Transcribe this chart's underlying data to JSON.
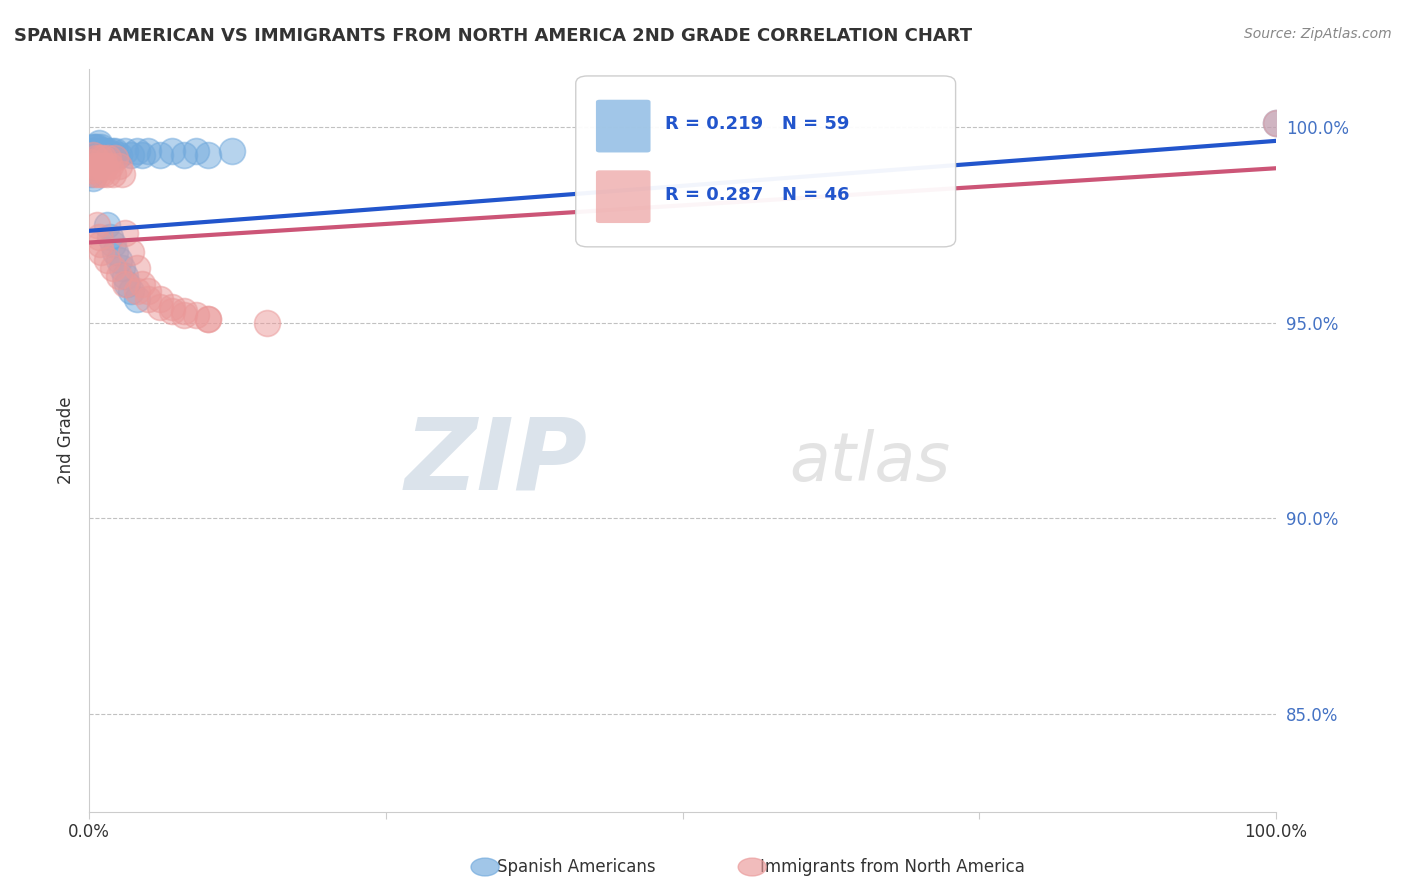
{
  "title": "SPANISH AMERICAN VS IMMIGRANTS FROM NORTH AMERICA 2ND GRADE CORRELATION CHART",
  "source": "Source: ZipAtlas.com",
  "ylabel": "2nd Grade",
  "xlim": [
    0.0,
    1.0
  ],
  "ylim": [
    0.825,
    1.015
  ],
  "ytick_positions": [
    0.85,
    0.9,
    0.95,
    1.0
  ],
  "ytick_labels": [
    "85.0%",
    "90.0%",
    "95.0%",
    "100.0%"
  ],
  "watermark_zip": "ZIP",
  "watermark_atlas": "atlas",
  "legend_r1": "R = 0.219",
  "legend_n1": "N = 59",
  "legend_r2": "R = 0.287",
  "legend_n2": "N = 46",
  "series1_color": "#6fa8dc",
  "series2_color": "#ea9999",
  "trendline1_color": "#2255cc",
  "trendline2_color": "#cc5577",
  "background_color": "#ffffff",
  "grid_color": "#bbbbbb",
  "blue_scatter_x": [
    0.001,
    0.001,
    0.002,
    0.002,
    0.002,
    0.003,
    0.003,
    0.003,
    0.003,
    0.004,
    0.004,
    0.005,
    0.005,
    0.005,
    0.006,
    0.006,
    0.007,
    0.007,
    0.008,
    0.008,
    0.008,
    0.009,
    0.009,
    0.01,
    0.01,
    0.011,
    0.012,
    0.013,
    0.014,
    0.015,
    0.016,
    0.017,
    0.018,
    0.019,
    0.02,
    0.022,
    0.025,
    0.03,
    0.035,
    0.04,
    0.045,
    0.05,
    0.06,
    0.07,
    0.08,
    0.09,
    0.1,
    0.12,
    0.015,
    0.018,
    0.02,
    0.022,
    0.025,
    0.028,
    0.03,
    0.032,
    0.035,
    0.04,
    1.0
  ],
  "blue_scatter_y": [
    0.993,
    0.99,
    0.994,
    0.991,
    0.988,
    0.995,
    0.993,
    0.99,
    0.987,
    0.994,
    0.991,
    0.995,
    0.993,
    0.99,
    0.994,
    0.991,
    0.995,
    0.993,
    0.996,
    0.993,
    0.99,
    0.994,
    0.992,
    0.995,
    0.993,
    0.994,
    0.993,
    0.992,
    0.994,
    0.993,
    0.994,
    0.993,
    0.992,
    0.994,
    0.993,
    0.994,
    0.993,
    0.994,
    0.993,
    0.994,
    0.993,
    0.994,
    0.993,
    0.994,
    0.993,
    0.994,
    0.993,
    0.994,
    0.975,
    0.972,
    0.97,
    0.968,
    0.966,
    0.964,
    0.962,
    0.96,
    0.958,
    0.956,
    1.001
  ],
  "pink_scatter_x": [
    0.001,
    0.002,
    0.003,
    0.004,
    0.005,
    0.006,
    0.007,
    0.008,
    0.009,
    0.01,
    0.011,
    0.012,
    0.013,
    0.015,
    0.016,
    0.018,
    0.02,
    0.022,
    0.025,
    0.028,
    0.03,
    0.035,
    0.04,
    0.045,
    0.05,
    0.06,
    0.07,
    0.08,
    0.09,
    0.1,
    0.007,
    0.008,
    0.009,
    0.01,
    0.015,
    0.02,
    0.025,
    0.03,
    0.04,
    0.05,
    0.06,
    0.07,
    0.08,
    0.1,
    0.15,
    1.0
  ],
  "pink_scatter_y": [
    0.991,
    0.989,
    0.993,
    0.99,
    0.988,
    0.992,
    0.99,
    0.988,
    0.992,
    0.99,
    0.988,
    0.992,
    0.99,
    0.988,
    0.992,
    0.99,
    0.988,
    0.992,
    0.99,
    0.988,
    0.973,
    0.968,
    0.964,
    0.96,
    0.958,
    0.956,
    0.954,
    0.953,
    0.952,
    0.951,
    0.975,
    0.972,
    0.97,
    0.968,
    0.966,
    0.964,
    0.962,
    0.96,
    0.958,
    0.956,
    0.954,
    0.953,
    0.952,
    0.951,
    0.95,
    1.001
  ],
  "trendline1_x": [
    0.0,
    1.0
  ],
  "trendline1_y": [
    0.9735,
    0.9965
  ],
  "trendline2_x": [
    0.0,
    1.0
  ],
  "trendline2_y": [
    0.9705,
    0.9895
  ]
}
